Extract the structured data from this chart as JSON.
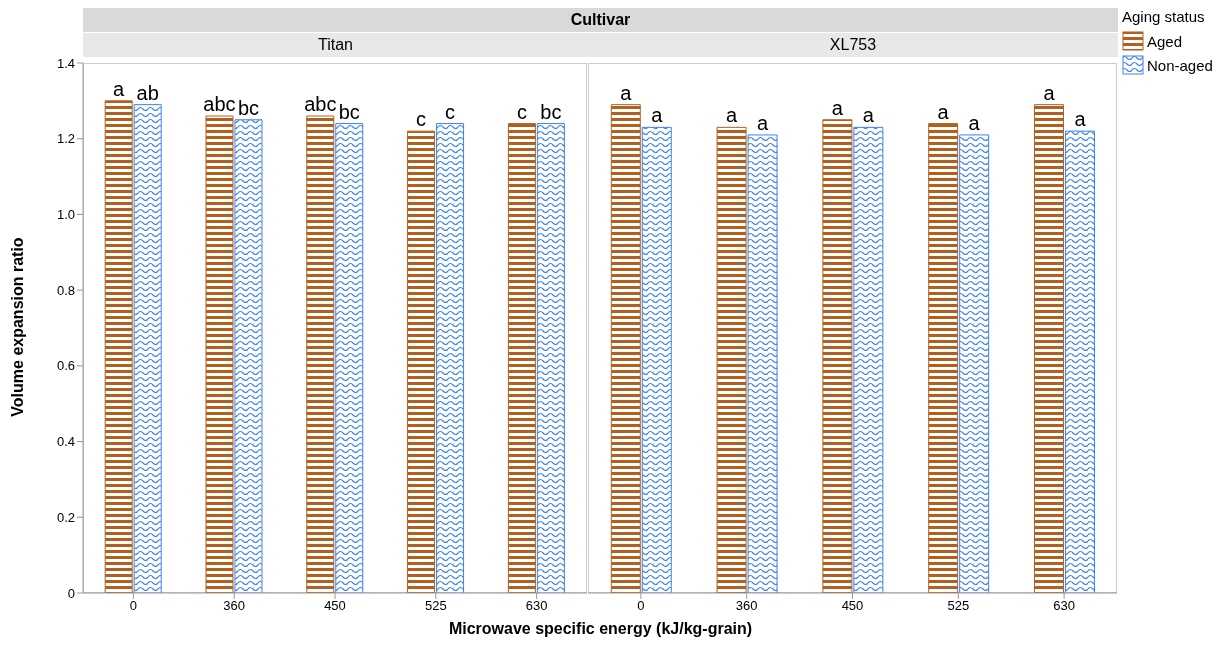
{
  "chart_data": [
    {
      "type": "bar",
      "title": "Titan",
      "subtitle": "Cultivar",
      "xlabel": "Microwave specific energy (kJ/kg-grain)",
      "ylabel": "Volume expansion ratio",
      "categories": [
        "0",
        "360",
        "450",
        "525",
        "630"
      ],
      "ylim": [
        0,
        1.4
      ],
      "yticks": [
        0,
        0.2,
        0.4,
        0.6,
        0.8,
        {
          "value": 1,
          "label": "1.0"
        },
        1.2,
        1.4
      ],
      "series": [
        {
          "color": "#b35f1e",
          "values": [
            1.3,
            1.26,
            1.26,
            1.22,
            1.24
          ],
          "value_labels": [
            "a",
            "abc",
            "abc",
            "c",
            "c"
          ]
        },
        {
          "color": "#3b82f0",
          "values": [
            1.29,
            1.25,
            1.24,
            1.24,
            1.24
          ],
          "value_labels": [
            "ab",
            "bc",
            "bc",
            "c",
            "bc"
          ]
        }
      ]
    },
    {
      "type": "bar",
      "title": "XL753",
      "categories": [
        "0",
        "360",
        "450",
        "525",
        "630"
      ],
      "ylim": [
        0,
        1.4
      ],
      "yticks": [
        0,
        0.2,
        0.4,
        0.6,
        0.8,
        1,
        1.2,
        1.4
      ],
      "tick_labels": "x",
      "legend": "right",
      "legend_title": "Aging status",
      "series": [
        {
          "name": "Aged",
          "color": "#b35f1e",
          "values": [
            1.29,
            1.23,
            1.25,
            1.24,
            1.29
          ],
          "value_labels": [
            "a",
            "a",
            "a",
            "a",
            "a"
          ]
        },
        {
          "name": "Non-aged",
          "color": "#3b82f0",
          "values": [
            1.23,
            1.21,
            1.23,
            1.21,
            1.22
          ],
          "value_labels": [
            "a",
            "a",
            "a",
            "a",
            "a"
          ]
        }
      ]
    }
  ]
}
